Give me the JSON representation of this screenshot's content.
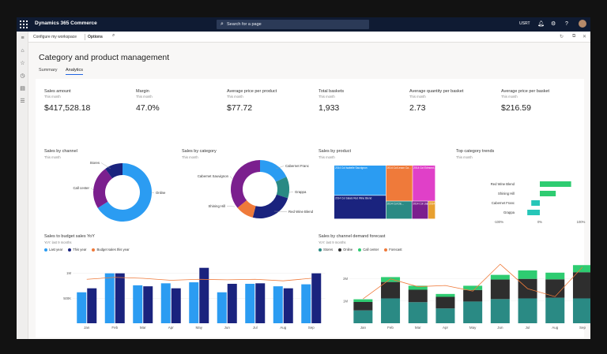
{
  "topbar": {
    "app_name": "Dynamics 365 Commerce",
    "search_placeholder": "Search for a page",
    "company": "USRT"
  },
  "actionbar": {
    "configure": "Configure my workspace",
    "options": "Options"
  },
  "page": {
    "title": "Category and product management",
    "tabs": [
      "Summary",
      "Analytics"
    ],
    "active_tab": "Analytics"
  },
  "kpis": [
    {
      "label": "Sales amount",
      "period": "This month",
      "value": "$417,528.18"
    },
    {
      "label": "Margin",
      "period": "This month",
      "value": "47.0%"
    },
    {
      "label": "Average price per product",
      "period": "This month",
      "value": "$77.72"
    },
    {
      "label": "Total baskets",
      "period": "This month",
      "value": "1,933"
    },
    {
      "label": "Average quantity per basket",
      "period": "This month",
      "value": "2.73"
    },
    {
      "label": "Average price per basket",
      "period": "This month",
      "value": "$216.59"
    }
  ],
  "chart_data": [
    {
      "type": "pie",
      "title": "Sales by channel",
      "subtitle": "This month",
      "categories": [
        "Online",
        "Stores",
        "Call center"
      ],
      "values": [
        66,
        24,
        10
      ],
      "colors": [
        "#2b9cf2",
        "#7b1f8e",
        "#1a237e"
      ]
    },
    {
      "type": "pie",
      "title": "Sales by category",
      "subtitle": "This month",
      "categories": [
        "Cabernet Franc",
        "Grappa",
        "Red Wine Blend",
        "Shining Hill",
        "Cabernet Sauvignon"
      ],
      "values": [
        18,
        12,
        24,
        10,
        36
      ],
      "colors": [
        "#2b9cf2",
        "#2a8a84",
        "#1a237e",
        "#ef7a3a",
        "#7b1f8e"
      ]
    },
    {
      "type": "heatmap",
      "title": "Sales by product",
      "subtitle": "This month",
      "categories": [
        "Cabernet Sauvignon",
        "Red Wine Blend",
        "Cabernet Franc",
        "Shining Hill",
        "Grappa",
        "Cabernet Sauvignon",
        "Red Wine Blend",
        "Cabernet Franc",
        "Shining Hill",
        "Grappa"
      ],
      "tile_labels": [
        "2014 Col Isabelle Sauvignon",
        "2014 Col Salais Red Wine Blend",
        "2014 Col Lecon Ca...",
        "2014 Col Edmond...",
        "2014 Col Cle...",
        "2014 Col Lilane R...",
        "2014 Col..."
      ],
      "colors": [
        "#2b9cf2",
        "#1a237e",
        "#ef7a3a",
        "#e040c8",
        "#2a8a84",
        "#7b1f8e",
        "#e8a030"
      ]
    },
    {
      "type": "bar",
      "title": "Top category trends",
      "subtitle": "This month",
      "categories": [
        "Red Wine Blend",
        "Shining Hill",
        "Cabernet Franc",
        "Grappa"
      ],
      "values": [
        55,
        28,
        -15,
        -22
      ],
      "colors": [
        "#2ecc71",
        "#2ecc71",
        "#26c6b8",
        "#26c6b8"
      ],
      "x_ticks": [
        "-100%",
        "0%",
        "100%"
      ]
    },
    {
      "type": "bar",
      "title": "Sales to budget sales YoY",
      "subtitle": "YoY: last 9 months",
      "categories": [
        "Jan",
        "Feb",
        "Mar",
        "Apr",
        "May",
        "Jun",
        "Jul",
        "Aug",
        "Sep"
      ],
      "y_ticks": [
        "500K",
        "1M"
      ],
      "series": [
        {
          "name": "Last year",
          "type": "bar",
          "color": "#2b9cf2",
          "values": [
            620,
            1000,
            760,
            800,
            820,
            620,
            790,
            740,
            780
          ]
        },
        {
          "name": "This year",
          "type": "bar",
          "color": "#1a237e",
          "values": [
            700,
            1000,
            740,
            700,
            1110,
            790,
            800,
            700,
            1000
          ]
        },
        {
          "name": "Budget sales this year",
          "type": "line",
          "color": "#ef7a3a",
          "values": [
            880,
            920,
            900,
            860,
            880,
            870,
            880,
            850,
            900
          ]
        }
      ]
    },
    {
      "type": "bar",
      "title": "Sales by channel demand forecast",
      "subtitle": "YoY: last 9 months",
      "categories": [
        "Jan",
        "Feb",
        "Mar",
        "Apr",
        "May",
        "Jun",
        "Jul",
        "Aug",
        "Sep"
      ],
      "y_ticks": [
        "1M",
        "2M"
      ],
      "series": [
        {
          "name": "Stores",
          "type": "bar",
          "color": "#2a8a84",
          "values": [
            580,
            1120,
            950,
            670,
            980,
            1090,
            1120,
            1150,
            1120
          ]
        },
        {
          "name": "Online",
          "type": "bar",
          "color": "#2e2e2e",
          "values": [
            380,
            740,
            560,
            520,
            520,
            880,
            880,
            830,
            1180
          ]
        },
        {
          "name": "Call center",
          "type": "bar",
          "color": "#2ecc71",
          "values": [
            120,
            220,
            180,
            130,
            190,
            210,
            380,
            300,
            320
          ]
        },
        {
          "name": "Forecast",
          "type": "line",
          "color": "#ef7a3a",
          "values": [
            1100,
            2000,
            1650,
            1700,
            1450,
            2660,
            1560,
            1200,
            2530
          ]
        }
      ]
    }
  ]
}
